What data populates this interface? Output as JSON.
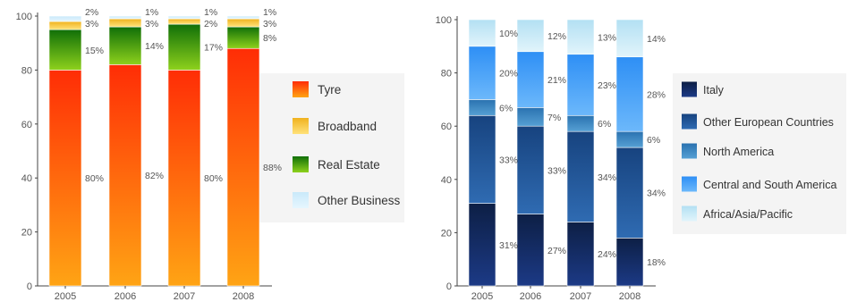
{
  "chart_data": [
    {
      "type": "bar",
      "stacked": true,
      "categories": [
        "2005",
        "2006",
        "2007",
        "2008"
      ],
      "ylim": [
        0,
        100
      ],
      "yticks": [
        "0",
        "20",
        "40",
        "60",
        "80",
        "100"
      ],
      "series": [
        {
          "name": "Tyre",
          "values": [
            80,
            82,
            80,
            88
          ],
          "labels": [
            "80%",
            "82%",
            "80%",
            "88%"
          ],
          "color_top": "#ff2d06",
          "color_bottom": "#ffa414"
        },
        {
          "name": "Real Estate",
          "values": [
            15,
            14,
            17,
            8
          ],
          "labels": [
            "15%",
            "14%",
            "17%",
            "8%"
          ],
          "color_top": "#106f08",
          "color_bottom": "#8ed11c"
        },
        {
          "name": "Broadband",
          "values": [
            3,
            3,
            2,
            3
          ],
          "labels": [
            "3%",
            "3%",
            "2%",
            "3%"
          ],
          "color_top": "#f0b21e",
          "color_bottom": "#ffe27a"
        },
        {
          "name": "Other Business",
          "values": [
            2,
            1,
            1,
            1
          ],
          "labels": [
            "2%",
            "1%",
            "1%",
            "1%"
          ],
          "color_top": "#c9e9fa",
          "color_bottom": "#e6f6fe"
        }
      ],
      "legend": [
        "Tyre",
        "Broadband",
        "Real Estate",
        "Other Business"
      ],
      "legend_position": "right"
    },
    {
      "type": "bar",
      "stacked": true,
      "categories": [
        "2005",
        "2006",
        "2007",
        "2008"
      ],
      "ylim": [
        0,
        100
      ],
      "yticks": [
        "0",
        "20",
        "40",
        "60",
        "80",
        "100"
      ],
      "series": [
        {
          "name": "Italy",
          "values": [
            31,
            27,
            24,
            18
          ],
          "labels": [
            "31%",
            "27%",
            "24%",
            "18%"
          ],
          "color_top": "#0d1f45",
          "color_bottom": "#1c3a86"
        },
        {
          "name": "Other European Countries",
          "values": [
            33,
            33,
            34,
            34
          ],
          "labels": [
            "33%",
            "33%",
            "34%",
            "34%"
          ],
          "color_top": "#17437f",
          "color_bottom": "#2f6bb2"
        },
        {
          "name": "North America",
          "values": [
            6,
            7,
            6,
            6
          ],
          "labels": [
            "6%",
            "7%",
            "6%",
            "6%"
          ],
          "color_top": "#2a72b0",
          "color_bottom": "#56a0d4"
        },
        {
          "name": "Central and South America",
          "values": [
            20,
            21,
            23,
            28
          ],
          "labels": [
            "20%",
            "21%",
            "23%",
            "28%"
          ],
          "color_top": "#2e8ff5",
          "color_bottom": "#6cb8fb"
        },
        {
          "name": "Africa/Asia/Pacific",
          "values": [
            10,
            12,
            13,
            14
          ],
          "labels": [
            "10%",
            "12%",
            "13%",
            "14%"
          ],
          "color_top": "#b3e0f3",
          "color_bottom": "#e1f4fb"
        }
      ],
      "legend": [
        "Italy",
        "Other European Countries",
        "North America",
        "Central and South America",
        "Africa/Asia/Pacific"
      ],
      "legend_position": "right"
    }
  ]
}
